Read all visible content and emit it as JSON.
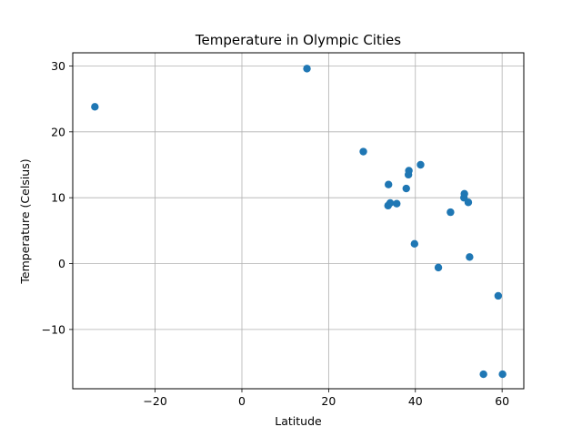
{
  "chart_data": {
    "type": "scatter",
    "title": "Temperature in Olympic Cities",
    "xlabel": "Latitude",
    "ylabel": "Temperature (Celsius)",
    "xlim": [
      -39,
      65
    ],
    "ylim": [
      -19,
      32
    ],
    "xticks": [
      -20,
      0,
      20,
      40,
      60
    ],
    "yticks": [
      -10,
      0,
      10,
      20,
      30
    ],
    "xtick_labels": [
      "−20",
      "0",
      "20",
      "40",
      "60"
    ],
    "ytick_labels": [
      "−10",
      "0",
      "10",
      "20",
      "30"
    ],
    "grid": true,
    "marker_color": "#1f77b4",
    "series": [
      {
        "points": [
          {
            "x": -33.9,
            "y": 23.8
          },
          {
            "x": 15.0,
            "y": 29.6
          },
          {
            "x": 28.0,
            "y": 17.0
          },
          {
            "x": 33.8,
            "y": 12.0
          },
          {
            "x": 33.7,
            "y": 8.8
          },
          {
            "x": 34.2,
            "y": 9.2
          },
          {
            "x": 35.7,
            "y": 9.1
          },
          {
            "x": 37.9,
            "y": 11.4
          },
          {
            "x": 38.4,
            "y": 13.5
          },
          {
            "x": 38.5,
            "y": 14.1
          },
          {
            "x": 41.2,
            "y": 15.0
          },
          {
            "x": 39.8,
            "y": 3.0
          },
          {
            "x": 45.3,
            "y": -0.6
          },
          {
            "x": 48.1,
            "y": 7.8
          },
          {
            "x": 51.2,
            "y": 10.0
          },
          {
            "x": 51.3,
            "y": 10.6
          },
          {
            "x": 52.2,
            "y": 9.3
          },
          {
            "x": 52.5,
            "y": 1.0
          },
          {
            "x": 59.1,
            "y": -4.9
          },
          {
            "x": 55.7,
            "y": -16.8
          },
          {
            "x": 60.1,
            "y": -16.8
          }
        ]
      }
    ]
  }
}
